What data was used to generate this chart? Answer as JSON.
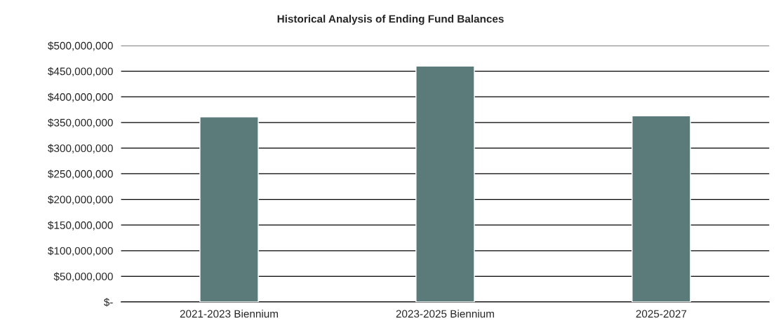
{
  "chart_data": {
    "type": "bar",
    "title": "Historical Analysis of Ending Fund Balances",
    "categories": [
      "2021-2023 Biennium",
      "2023-2025 Biennium",
      "2025-2027"
    ],
    "values": [
      361000000,
      460000000,
      363000000
    ],
    "color": "#5b7a7a",
    "ylim": [
      0,
      500000000
    ],
    "yticks": [
      {
        "value": 0,
        "label": "$-"
      },
      {
        "value": 50000000,
        "label": "$50,000,000"
      },
      {
        "value": 100000000,
        "label": "$100,000,000"
      },
      {
        "value": 150000000,
        "label": "$150,000,000"
      },
      {
        "value": 200000000,
        "label": "$200,000,000"
      },
      {
        "value": 250000000,
        "label": "$250,000,000"
      },
      {
        "value": 300000000,
        "label": "$300,000,000"
      },
      {
        "value": 350000000,
        "label": "$350,000,000"
      },
      {
        "value": 400000000,
        "label": "$400,000,000"
      },
      {
        "value": 450000000,
        "label": "$450,000,000"
      },
      {
        "value": 500000000,
        "label": "$500,000,000"
      }
    ],
    "grid": "y",
    "legend": false
  }
}
